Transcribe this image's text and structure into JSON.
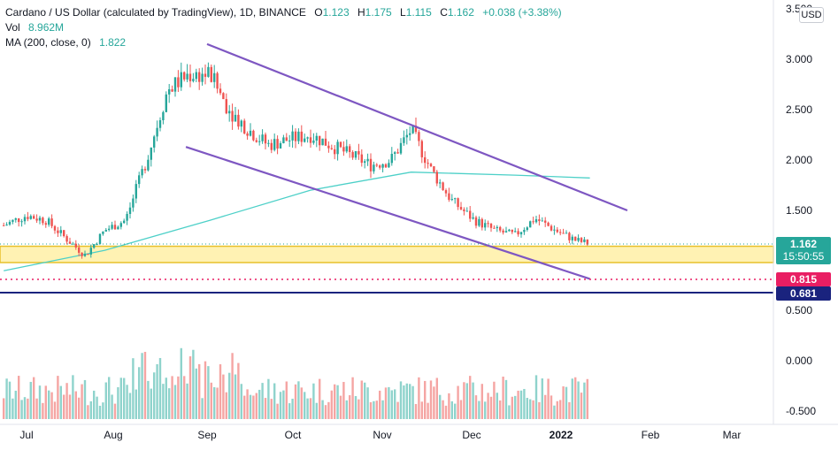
{
  "legend": {
    "title": "Cardano / US Dollar (calculated by TradingView), 1D, BINANCE",
    "open_label": "O",
    "open": "1.123",
    "high_label": "H",
    "high": "1.175",
    "low_label": "L",
    "low": "1.115",
    "close_label": "C",
    "close": "1.162",
    "change": "+0.038 (+3.38%)",
    "vol_label": "Vol",
    "vol_value": "8.962M",
    "ma_label": "MA (200, close, 0)",
    "ma_value": "1.822"
  },
  "currency": "USD",
  "price_tags": {
    "last_price": "1.162",
    "countdown": "15:50:55",
    "level_red": "0.815",
    "level_blue": "0.681"
  },
  "colors": {
    "up": "#26a69a",
    "down": "#ef5350",
    "ma": "#4dd0c8",
    "channel": "#7e57c2",
    "zone": "#fff2b3",
    "zone_border": "#e8c02a",
    "level_red": "#e91e63",
    "level_blue": "#1a237e"
  },
  "chart_data": {
    "type": "line",
    "title": "Cardano / US Dollar (calculated by TradingView), 1D, BINANCE",
    "xlabel": "",
    "ylabel": "",
    "x_ticks": [
      "Jul",
      "Aug",
      "Sep",
      "Oct",
      "Nov",
      "Dec",
      "2022",
      "Feb",
      "Mar"
    ],
    "y_ticks": [
      "3.500",
      "3.000",
      "2.500",
      "2.000",
      "1.500",
      "0.500",
      "0.000",
      "-0.500"
    ],
    "ylim": [
      -0.6,
      3.5
    ],
    "grid": false,
    "series": [
      {
        "name": "",
        "style": "candles",
        "x": [
          "Jun 24",
          "Jul 1",
          "Jul 8",
          "Jul 15",
          "Jul 22",
          "Jul 29",
          "Aug 5",
          "Aug 12",
          "Aug 19",
          "Aug 26",
          "Sep 2",
          "Sep 9",
          "Sep 16",
          "Sep 23",
          "Sep 30",
          "Oct 7",
          "Oct 14",
          "Oct 21",
          "Oct 28",
          "Nov 4",
          "Nov 11",
          "Nov 18",
          "Nov 25",
          "Dec 2",
          "Dec 9",
          "Dec 16",
          "Dec 23",
          "Dec 30",
          "Jan 6",
          "Jan 11"
        ],
        "values": [
          1.35,
          1.45,
          1.4,
          1.22,
          1.05,
          1.3,
          1.4,
          2.0,
          2.7,
          2.85,
          2.85,
          2.5,
          2.3,
          2.15,
          2.2,
          2.25,
          2.15,
          2.05,
          1.95,
          2.0,
          2.3,
          1.9,
          1.6,
          1.4,
          1.3,
          1.25,
          1.42,
          1.3,
          1.2,
          1.162
        ]
      },
      {
        "name": "",
        "style": "line",
        "x": [
          "Jun 24",
          "Jul 29",
          "Sep 2",
          "Oct 7",
          "Nov 11",
          "Dec 16",
          "Jan 11"
        ],
        "values": [
          0.9,
          1.1,
          1.4,
          1.7,
          1.88,
          1.85,
          1.822
        ]
      }
    ],
    "annotations": [
      {
        "type": "trendline",
        "from": [
          "Sep 1",
          3.15
        ],
        "to": [
          "Jan 24",
          1.5
        ]
      },
      {
        "type": "trendline",
        "from": [
          "Aug 25",
          2.13
        ],
        "to": [
          "Jan 11",
          0.82
        ]
      },
      {
        "type": "zone",
        "from": 0.98,
        "to": 1.14
      },
      {
        "type": "hline",
        "value": 0.815
      },
      {
        "type": "hline",
        "value": 0.681
      }
    ]
  }
}
